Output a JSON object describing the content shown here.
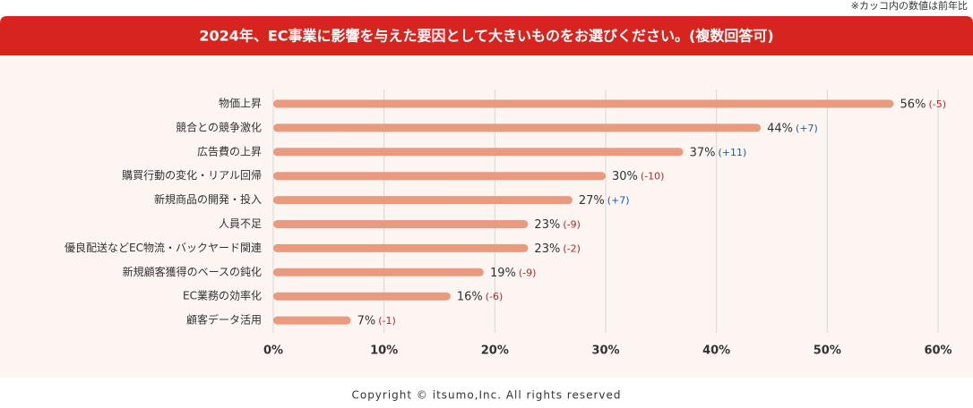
{
  "note": "※カッコ内の数値は前年比",
  "footer": "Copyright © itsumo,Inc. All rights reserved",
  "chart_data": {
    "type": "hbar",
    "title": "2024年、EC事業に影響を与えた要因として大きいものをお選びください。(複数回答可)",
    "categories": [
      "物価上昇",
      "競合との競争激化",
      "広告費の上昇",
      "購買行動の変化・リアル回帰",
      "新規商品の開発・投入",
      "人員不足",
      "優良配送などEC物流・バックヤード関連",
      "新規顧客獲得のベースの鈍化",
      "EC業務の効率化",
      "顧客データ活用"
    ],
    "values": [
      56,
      44,
      37,
      30,
      27,
      23,
      23,
      19,
      16,
      7
    ],
    "value_labels": [
      "56%",
      "44%",
      "37%",
      "30%",
      "27%",
      "23%",
      "23%",
      "19%",
      "16%",
      "7%"
    ],
    "change_labels": [
      "(-5)",
      "(+7)",
      "(+11)",
      "(-10)",
      "(+7)",
      "(-9)",
      "(-2)",
      "(-9)",
      "(-6)",
      "(-1)"
    ],
    "color": "#e99a7f",
    "xlim": [
      0,
      60
    ],
    "xticks": [
      {
        "value": 0,
        "label": "0%"
      },
      {
        "value": 10,
        "label": "10%"
      },
      {
        "value": 20,
        "label": "20%"
      },
      {
        "value": 30,
        "label": "30%"
      },
      {
        "value": 40,
        "label": "40%"
      },
      {
        "value": 50,
        "label": "50%"
      },
      {
        "value": 60,
        "label": "60%"
      }
    ],
    "grid": true
  }
}
